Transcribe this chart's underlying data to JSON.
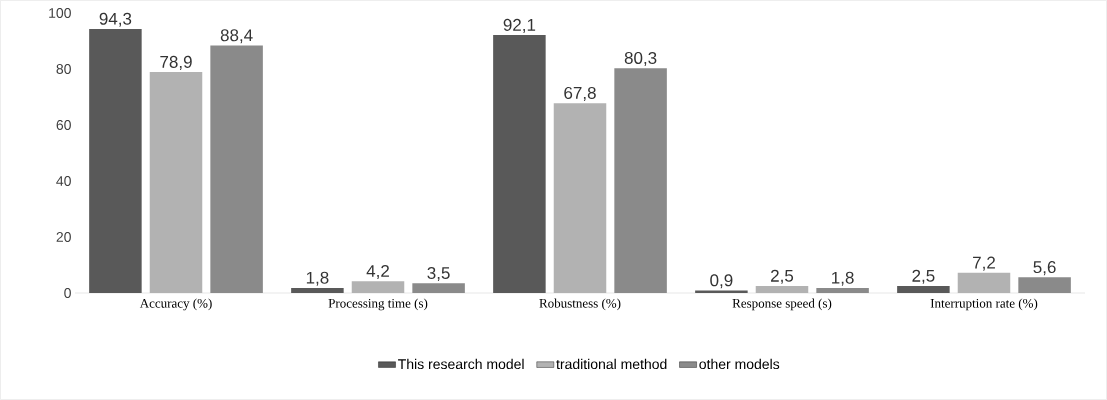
{
  "chart_data": {
    "type": "bar",
    "categories": [
      "Accuracy (%)",
      "Processing time (s)",
      "Robustness (%)",
      "Response speed (s)",
      "Interruption rate (%)"
    ],
    "series": [
      {
        "name": "This research model",
        "color": "#595959",
        "values": [
          94.3,
          1.8,
          92.1,
          0.9,
          2.5
        ],
        "value_labels": [
          "94,3",
          "1,8",
          "92,1",
          "0,9",
          "2,5"
        ]
      },
      {
        "name": "traditional method",
        "color": "#b2b2b2",
        "values": [
          78.9,
          4.2,
          67.8,
          2.5,
          7.2
        ],
        "value_labels": [
          "78,9",
          "4,2",
          "67,8",
          "2,5",
          "7,2"
        ]
      },
      {
        "name": "other models",
        "color": "#8a8a8a",
        "values": [
          88.4,
          3.5,
          80.3,
          1.8,
          5.6
        ],
        "value_labels": [
          "88,4",
          "3,5",
          "80,3",
          "1,8",
          "5,6"
        ]
      }
    ],
    "ylim": [
      0,
      100
    ],
    "yticks": [
      0,
      20,
      40,
      60,
      80,
      100
    ],
    "legend": "bottom"
  }
}
